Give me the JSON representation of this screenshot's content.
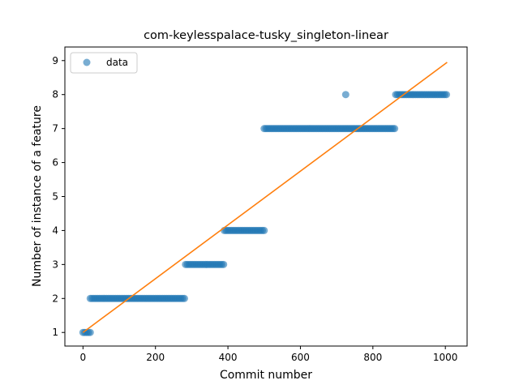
{
  "chart_data": {
    "type": "scatter",
    "title": "com-keylesspalace-tusky_singleton-linear",
    "xlabel": "Commit number",
    "ylabel": "Number of instance of a feature",
    "xlim": [
      -50,
      1060
    ],
    "ylim": [
      0.6,
      9.4
    ],
    "xticks": [
      0,
      200,
      400,
      600,
      800,
      1000
    ],
    "yticks": [
      1,
      2,
      3,
      4,
      5,
      6,
      7,
      8,
      9
    ],
    "legend": {
      "position": "top-left",
      "entries": [
        "data"
      ]
    },
    "grid": false,
    "series": [
      {
        "name": "data",
        "kind": "scatter",
        "color": "#1f77b4",
        "opacity": 0.6,
        "segments": [
          {
            "x_start": 0,
            "x_end": 20,
            "y": 1
          },
          {
            "x_start": 20,
            "x_end": 283,
            "y": 2
          },
          {
            "x_start": 283,
            "x_end": 390,
            "y": 3
          },
          {
            "x_start": 390,
            "x_end": 500,
            "y": 4
          },
          {
            "x_start": 500,
            "x_end": 863,
            "y": 7
          },
          {
            "x_start": 863,
            "x_end": 1005,
            "y": 8
          }
        ],
        "extra_points": [
          {
            "x": 725,
            "y": 8
          }
        ]
      },
      {
        "kind": "line",
        "color": "#ff7f0e",
        "points": [
          {
            "x": 0,
            "y": 1.0
          },
          {
            "x": 1005,
            "y": 8.95
          }
        ]
      }
    ]
  }
}
